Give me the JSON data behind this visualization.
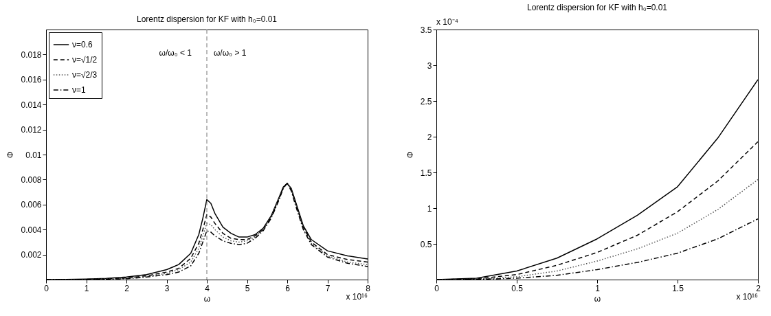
{
  "chart_data": [
    {
      "type": "line",
      "title": "Lorentz dispersion for KF with h₀=0.01",
      "xlabel": "ω",
      "ylabel": "Φ",
      "x": [
        0,
        0.5,
        1,
        1.5,
        2,
        2.5,
        3,
        3.3,
        3.6,
        3.8,
        3.9,
        4,
        4.1,
        4.2,
        4.4,
        4.6,
        4.8,
        5,
        5.2,
        5.4,
        5.6,
        5.8,
        5.9,
        6,
        6.1,
        6.2,
        6.4,
        6.6,
        7,
        7.5,
        8
      ],
      "series": [
        {
          "name": "ν=0.6",
          "color": "#000000",
          "line_style": "solid",
          "values": [
            0,
            1e-05,
            4e-05,
            0.0001,
            0.0002,
            0.0004,
            0.0008,
            0.0012,
            0.0021,
            0.0036,
            0.0049,
            0.0064,
            0.0061,
            0.0053,
            0.0042,
            0.0037,
            0.0034,
            0.0034,
            0.0036,
            0.0041,
            0.0051,
            0.0066,
            0.0074,
            0.0077,
            0.0073,
            0.0063,
            0.0043,
            0.0032,
            0.0023,
            0.0019,
            0.00165
          ]
        },
        {
          "name": "ν=√1/2",
          "color": "#000000",
          "line_style": "dashed",
          "values": [
            0,
            0,
            2e-05,
            6e-05,
            0.00013,
            0.0003,
            0.0006,
            0.0009,
            0.0017,
            0.0029,
            0.004,
            0.0052,
            0.005,
            0.0045,
            0.0037,
            0.0033,
            0.0032,
            0.0032,
            0.0035,
            0.004,
            0.005,
            0.0065,
            0.0073,
            0.0077,
            0.0072,
            0.0062,
            0.0042,
            0.003,
            0.002,
            0.0016,
            0.0014
          ]
        },
        {
          "name": "ν=√2/3",
          "color": "#555555",
          "line_style": "dotted",
          "values": [
            0,
            0,
            1e-05,
            5e-05,
            0.0001,
            0.00025,
            0.0005,
            0.0008,
            0.0014,
            0.0025,
            0.0035,
            0.0045,
            0.0044,
            0.004,
            0.0034,
            0.0031,
            0.003,
            0.0031,
            0.0034,
            0.004,
            0.005,
            0.0065,
            0.0073,
            0.0077,
            0.0072,
            0.0061,
            0.0041,
            0.0029,
            0.0019,
            0.0014,
            0.0012
          ]
        },
        {
          "name": "ν=1",
          "color": "#000000",
          "line_style": "dashdot",
          "values": [
            0,
            0,
            1e-05,
            3e-05,
            7e-05,
            0.0002,
            0.0004,
            0.0006,
            0.0011,
            0.0021,
            0.003,
            0.0039,
            0.0038,
            0.0035,
            0.0031,
            0.0029,
            0.0028,
            0.0029,
            0.0033,
            0.0039,
            0.0049,
            0.0064,
            0.0073,
            0.0077,
            0.0071,
            0.006,
            0.004,
            0.0028,
            0.0018,
            0.0013,
            0.00105
          ]
        }
      ],
      "xlim": [
        0,
        8
      ],
      "xticks": [
        0,
        1,
        2,
        3,
        4,
        5,
        6,
        7,
        8
      ],
      "ylim": [
        0,
        0.02
      ],
      "yticks": [
        0.002,
        0.004,
        0.006,
        0.008,
        0.01,
        0.012,
        0.014,
        0.016,
        0.018
      ],
      "ref_lines": [
        {
          "axis": "x",
          "value": 4,
          "color": "#777777",
          "line_style": "dashed"
        }
      ],
      "annotations": [
        "x 10¹⁶",
        "ω/ω₀ < 1",
        "ω/ω₀ > 1"
      ],
      "legend": "top left",
      "grid": false
    },
    {
      "type": "line",
      "title": "Lorentz dispersion for KF with h₀=0.01",
      "xlabel": "ω",
      "ylabel": "Φ",
      "x": [
        0,
        0.25,
        0.5,
        0.75,
        1,
        1.25,
        1.5,
        1.75,
        2
      ],
      "series": [
        {
          "name": "ν=0.6",
          "color": "#000000",
          "line_style": "solid",
          "values": [
            0,
            0.02,
            0.12,
            0.3,
            0.57,
            0.9,
            1.3,
            1.98,
            2.8
          ]
        },
        {
          "name": "ν=√1/2",
          "color": "#000000",
          "line_style": "dashed",
          "values": [
            0,
            0.01,
            0.07,
            0.2,
            0.38,
            0.62,
            0.95,
            1.38,
            1.93
          ]
        },
        {
          "name": "ν=√2/3",
          "color": "#555555",
          "line_style": "dotted",
          "values": [
            0,
            0.005,
            0.04,
            0.12,
            0.26,
            0.43,
            0.65,
            0.98,
            1.4
          ]
        },
        {
          "name": "ν=1",
          "color": "#000000",
          "line_style": "dashdot",
          "values": [
            0,
            0.002,
            0.02,
            0.06,
            0.14,
            0.24,
            0.37,
            0.57,
            0.85
          ]
        }
      ],
      "xlim": [
        0,
        2
      ],
      "xticks": [
        0,
        0.5,
        1,
        1.5,
        2
      ],
      "ylim": [
        0,
        3.5
      ],
      "yticks": [
        0.5,
        1,
        1.5,
        2,
        2.5,
        3,
        3.5
      ],
      "annotations": [
        "x 10¹⁶",
        "x 10⁻⁴"
      ],
      "legend": "top left",
      "grid": false
    }
  ]
}
